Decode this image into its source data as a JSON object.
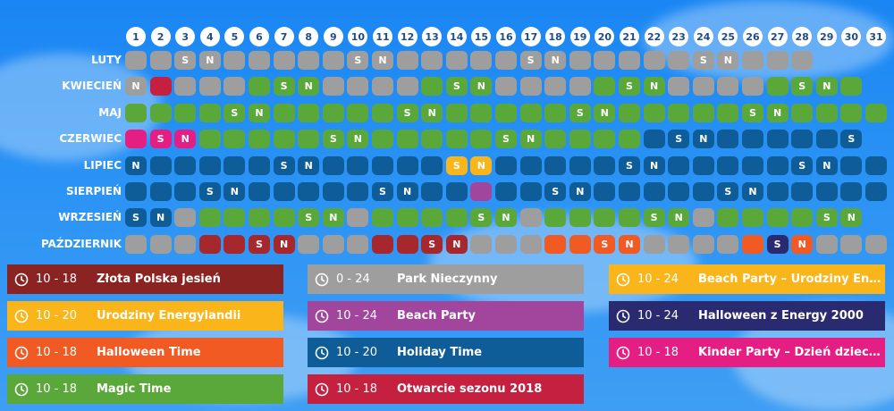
{
  "calendar": {
    "days": [
      "1",
      "2",
      "3",
      "4",
      "5",
      "6",
      "7",
      "8",
      "9",
      "10",
      "11",
      "12",
      "13",
      "14",
      "15",
      "16",
      "17",
      "18",
      "19",
      "20",
      "21",
      "22",
      "23",
      "24",
      "25",
      "26",
      "27",
      "28",
      "29",
      "30",
      "31"
    ],
    "colors": {
      "G": "#9e9e9e",
      "R": "#c62041",
      "E": "#5aa83a",
      "P": "#e41e83",
      "B": "#0e5d98",
      "Y": "#fab51a",
      "V": "#a2459d",
      "D": "#a6272c",
      "O": "#f15a22",
      "N": "#2a2a71"
    },
    "months": [
      {
        "name": "LUTY",
        "days": [
          [
            "G",
            ""
          ],
          [
            "G",
            ""
          ],
          [
            "G",
            "S"
          ],
          [
            "G",
            "N"
          ],
          [
            "G",
            ""
          ],
          [
            "G",
            ""
          ],
          [
            "G",
            ""
          ],
          [
            "G",
            ""
          ],
          [
            "G",
            ""
          ],
          [
            "G",
            "S"
          ],
          [
            "G",
            "N"
          ],
          [
            "G",
            ""
          ],
          [
            "G",
            ""
          ],
          [
            "G",
            ""
          ],
          [
            "G",
            ""
          ],
          [
            "G",
            ""
          ],
          [
            "G",
            "S"
          ],
          [
            "G",
            "N"
          ],
          [
            "G",
            ""
          ],
          [
            "G",
            ""
          ],
          [
            "G",
            ""
          ],
          [
            "G",
            ""
          ],
          [
            "G",
            ""
          ],
          [
            "G",
            "S"
          ],
          [
            "G",
            "N"
          ],
          [
            "G",
            ""
          ],
          [
            "G",
            ""
          ],
          [
            "G",
            ""
          ]
        ]
      },
      {
        "name": "KWIECIEŃ",
        "days": [
          [
            "G",
            "N"
          ],
          [
            "R",
            ""
          ],
          [
            "G",
            ""
          ],
          [
            "G",
            ""
          ],
          [
            "G",
            ""
          ],
          [
            "E",
            ""
          ],
          [
            "E",
            "S"
          ],
          [
            "E",
            "N"
          ],
          [
            "G",
            ""
          ],
          [
            "G",
            ""
          ],
          [
            "G",
            ""
          ],
          [
            "G",
            ""
          ],
          [
            "E",
            ""
          ],
          [
            "E",
            "S"
          ],
          [
            "E",
            "N"
          ],
          [
            "G",
            ""
          ],
          [
            "G",
            ""
          ],
          [
            "G",
            ""
          ],
          [
            "G",
            ""
          ],
          [
            "E",
            ""
          ],
          [
            "E",
            "S"
          ],
          [
            "E",
            "N"
          ],
          [
            "G",
            ""
          ],
          [
            "G",
            ""
          ],
          [
            "G",
            ""
          ],
          [
            "G",
            ""
          ],
          [
            "E",
            ""
          ],
          [
            "E",
            "S"
          ],
          [
            "E",
            "N"
          ],
          [
            "E",
            ""
          ]
        ]
      },
      {
        "name": "MAJ",
        "days": [
          [
            "E",
            ""
          ],
          [
            "E",
            ""
          ],
          [
            "E",
            ""
          ],
          [
            "E",
            ""
          ],
          [
            "E",
            "S"
          ],
          [
            "E",
            "N"
          ],
          [
            "E",
            ""
          ],
          [
            "E",
            ""
          ],
          [
            "E",
            ""
          ],
          [
            "E",
            ""
          ],
          [
            "E",
            ""
          ],
          [
            "E",
            "S"
          ],
          [
            "E",
            "N"
          ],
          [
            "E",
            ""
          ],
          [
            "E",
            ""
          ],
          [
            "E",
            ""
          ],
          [
            "E",
            ""
          ],
          [
            "E",
            ""
          ],
          [
            "E",
            "S"
          ],
          [
            "E",
            "N"
          ],
          [
            "E",
            ""
          ],
          [
            "E",
            ""
          ],
          [
            "E",
            ""
          ],
          [
            "E",
            ""
          ],
          [
            "E",
            ""
          ],
          [
            "E",
            "S"
          ],
          [
            "E",
            "N"
          ],
          [
            "E",
            ""
          ],
          [
            "E",
            ""
          ],
          [
            "E",
            ""
          ],
          [
            "E",
            ""
          ]
        ]
      },
      {
        "name": "CZERWIEC",
        "days": [
          [
            "P",
            ""
          ],
          [
            "P",
            "S"
          ],
          [
            "P",
            "N"
          ],
          [
            "E",
            ""
          ],
          [
            "E",
            ""
          ],
          [
            "E",
            ""
          ],
          [
            "E",
            ""
          ],
          [
            "E",
            ""
          ],
          [
            "E",
            "S"
          ],
          [
            "E",
            "N"
          ],
          [
            "E",
            ""
          ],
          [
            "E",
            ""
          ],
          [
            "E",
            ""
          ],
          [
            "E",
            ""
          ],
          [
            "E",
            ""
          ],
          [
            "E",
            "S"
          ],
          [
            "E",
            "N"
          ],
          [
            "E",
            ""
          ],
          [
            "E",
            ""
          ],
          [
            "E",
            ""
          ],
          [
            "E",
            ""
          ],
          [
            "B",
            ""
          ],
          [
            "B",
            "S"
          ],
          [
            "B",
            "N"
          ],
          [
            "B",
            ""
          ],
          [
            "B",
            ""
          ],
          [
            "B",
            ""
          ],
          [
            "B",
            ""
          ],
          [
            "B",
            ""
          ],
          [
            "B",
            "S"
          ]
        ]
      },
      {
        "name": "LIPIEC",
        "days": [
          [
            "B",
            "N"
          ],
          [
            "B",
            ""
          ],
          [
            "B",
            ""
          ],
          [
            "B",
            ""
          ],
          [
            "B",
            ""
          ],
          [
            "B",
            ""
          ],
          [
            "B",
            "S"
          ],
          [
            "B",
            "N"
          ],
          [
            "B",
            ""
          ],
          [
            "B",
            ""
          ],
          [
            "B",
            ""
          ],
          [
            "B",
            ""
          ],
          [
            "B",
            ""
          ],
          [
            "Y",
            "S"
          ],
          [
            "Y",
            "N"
          ],
          [
            "B",
            ""
          ],
          [
            "B",
            ""
          ],
          [
            "B",
            ""
          ],
          [
            "B",
            ""
          ],
          [
            "B",
            ""
          ],
          [
            "B",
            "S"
          ],
          [
            "B",
            "N"
          ],
          [
            "B",
            ""
          ],
          [
            "B",
            ""
          ],
          [
            "B",
            ""
          ],
          [
            "B",
            ""
          ],
          [
            "B",
            ""
          ],
          [
            "B",
            "S"
          ],
          [
            "B",
            "N"
          ],
          [
            "B",
            ""
          ],
          [
            "B",
            ""
          ]
        ]
      },
      {
        "name": "SIERPIEŃ",
        "days": [
          [
            "B",
            ""
          ],
          [
            "B",
            ""
          ],
          [
            "B",
            ""
          ],
          [
            "B",
            "S"
          ],
          [
            "B",
            "N"
          ],
          [
            "B",
            ""
          ],
          [
            "B",
            ""
          ],
          [
            "B",
            ""
          ],
          [
            "B",
            ""
          ],
          [
            "B",
            ""
          ],
          [
            "B",
            "S"
          ],
          [
            "B",
            "N"
          ],
          [
            "B",
            ""
          ],
          [
            "B",
            ""
          ],
          [
            "V",
            ""
          ],
          [
            "B",
            ""
          ],
          [
            "B",
            ""
          ],
          [
            "B",
            "S"
          ],
          [
            "B",
            "N"
          ],
          [
            "B",
            ""
          ],
          [
            "B",
            ""
          ],
          [
            "B",
            ""
          ],
          [
            "B",
            ""
          ],
          [
            "B",
            ""
          ],
          [
            "B",
            "S"
          ],
          [
            "B",
            "N"
          ],
          [
            "B",
            ""
          ],
          [
            "B",
            ""
          ],
          [
            "B",
            ""
          ],
          [
            "B",
            ""
          ],
          [
            "B",
            ""
          ]
        ]
      },
      {
        "name": "WRZESIEŃ",
        "days": [
          [
            "B",
            "S"
          ],
          [
            "B",
            "N"
          ],
          [
            "G",
            ""
          ],
          [
            "E",
            ""
          ],
          [
            "E",
            ""
          ],
          [
            "E",
            ""
          ],
          [
            "E",
            ""
          ],
          [
            "E",
            "S"
          ],
          [
            "E",
            "N"
          ],
          [
            "G",
            ""
          ],
          [
            "E",
            ""
          ],
          [
            "E",
            ""
          ],
          [
            "E",
            ""
          ],
          [
            "E",
            ""
          ],
          [
            "E",
            "S"
          ],
          [
            "E",
            "N"
          ],
          [
            "G",
            ""
          ],
          [
            "E",
            ""
          ],
          [
            "E",
            ""
          ],
          [
            "E",
            ""
          ],
          [
            "E",
            ""
          ],
          [
            "E",
            "S"
          ],
          [
            "E",
            "N"
          ],
          [
            "G",
            ""
          ],
          [
            "E",
            ""
          ],
          [
            "E",
            ""
          ],
          [
            "E",
            ""
          ],
          [
            "E",
            ""
          ],
          [
            "E",
            "S"
          ],
          [
            "E",
            "N"
          ]
        ]
      },
      {
        "name": "PAŹDZIERNIK",
        "days": [
          [
            "G",
            ""
          ],
          [
            "G",
            ""
          ],
          [
            "G",
            ""
          ],
          [
            "D",
            ""
          ],
          [
            "D",
            ""
          ],
          [
            "D",
            "S"
          ],
          [
            "D",
            "N"
          ],
          [
            "G",
            ""
          ],
          [
            "G",
            ""
          ],
          [
            "G",
            ""
          ],
          [
            "D",
            ""
          ],
          [
            "D",
            ""
          ],
          [
            "D",
            "S"
          ],
          [
            "D",
            "N"
          ],
          [
            "G",
            ""
          ],
          [
            "G",
            ""
          ],
          [
            "G",
            ""
          ],
          [
            "O",
            ""
          ],
          [
            "O",
            ""
          ],
          [
            "O",
            "S"
          ],
          [
            "O",
            "N"
          ],
          [
            "G",
            ""
          ],
          [
            "G",
            ""
          ],
          [
            "G",
            ""
          ],
          [
            "G",
            ""
          ],
          [
            "O",
            ""
          ],
          [
            "N",
            "S"
          ],
          [
            "O",
            "N"
          ],
          [
            "G",
            ""
          ],
          [
            "G",
            ""
          ],
          [
            "G",
            ""
          ]
        ]
      }
    ]
  },
  "legend": [
    {
      "hours": "10 - 18",
      "title": "Złota Polska jesień",
      "color": "#8b2323",
      "icon": "clock-icon"
    },
    {
      "hours": "0 - 24",
      "title": "Park Nieczynny",
      "color": "#9e9e9e",
      "icon": "clock-icon"
    },
    {
      "hours": "10 - 24",
      "title": "Beach Party – Urodziny Energylandii",
      "color": "#fab51a",
      "icon": "clock-icon"
    },
    {
      "hours": "10 - 20",
      "title": "Urodziny Energylandii",
      "color": "#fab51a",
      "icon": "clock-icon"
    },
    {
      "hours": "10 - 24",
      "title": "Beach Party",
      "color": "#a2459d",
      "icon": "clock-icon"
    },
    {
      "hours": "10 - 24",
      "title": "Halloween z Energy 2000",
      "color": "#2a2a71",
      "icon": "clock-icon"
    },
    {
      "hours": "10 - 18",
      "title": "Halloween Time",
      "color": "#f15a22",
      "icon": "clock-icon"
    },
    {
      "hours": "10 - 20",
      "title": "Holiday Time",
      "color": "#0e5d98",
      "icon": "clock-icon"
    },
    {
      "hours": "10 - 18",
      "title": "Kinder Party – Dzień dziecka",
      "color": "#e41e83",
      "icon": "clock-icon"
    },
    {
      "hours": "10 - 18",
      "title": "Magic Time",
      "color": "#5aa83a",
      "icon": "clock-icon"
    },
    {
      "hours": "10 - 18",
      "title": "Otwarcie sezonu 2018",
      "color": "#c62041",
      "icon": "clock-icon"
    }
  ]
}
